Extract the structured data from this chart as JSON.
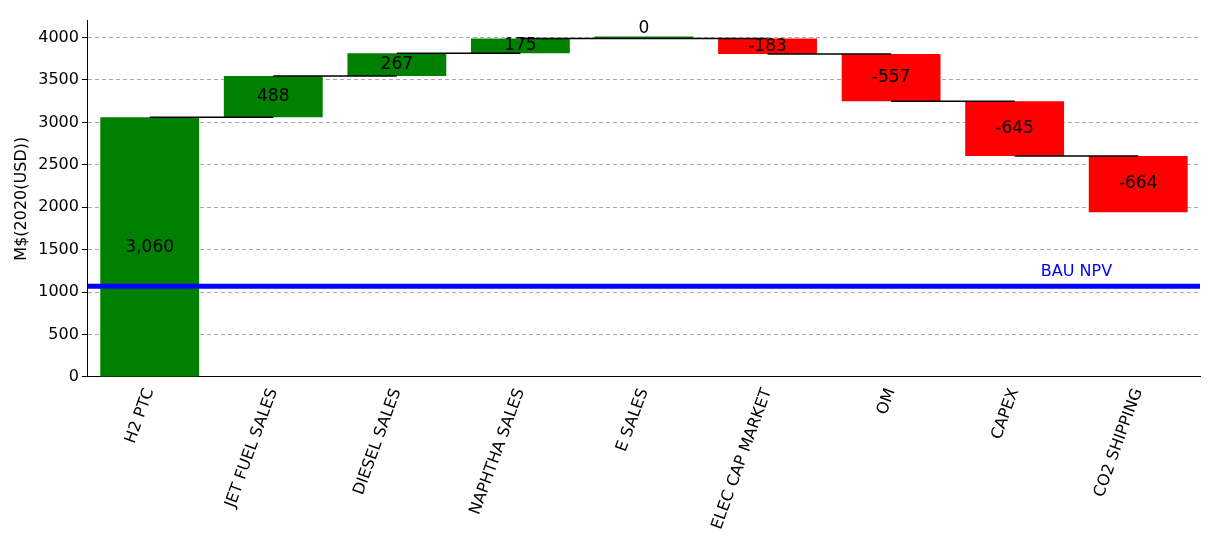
{
  "chart_data": {
    "type": "bar",
    "ylabel": "M$(2020(USD))",
    "categories": [
      "H2 PTC",
      "JET FUEL SALES",
      "DIESEL SALES",
      "NAPHTHA SALES",
      "E SALES",
      "ELEC CAP MARKET",
      "OM",
      "CAPEX",
      "CO2 SHIPPING"
    ],
    "values": [
      3060,
      488,
      267,
      175,
      0,
      -183,
      -557,
      -645,
      -664
    ],
    "base": [
      0,
      3060,
      3548,
      3815,
      3990,
      3990,
      3807,
      3250,
      2605
    ],
    "colors": [
      "#008000",
      "#008000",
      "#008000",
      "#008000",
      "#008000",
      "#ff0000",
      "#ff0000",
      "#ff0000",
      "#ff0000"
    ],
    "value_labels": [
      "3,060",
      "488",
      "267",
      "175",
      "0",
      "-183",
      "-557",
      "-645",
      "-664"
    ],
    "ylim": [
      0,
      4200
    ],
    "yticks": [
      0,
      500,
      1000,
      1500,
      2000,
      2500,
      3000,
      3500,
      4000
    ],
    "grid": "y",
    "ref_lines": [
      {
        "axis": "y",
        "value": 1070,
        "label": "BAU NPV",
        "color": "#0000ff"
      }
    ],
    "legend": false
  }
}
